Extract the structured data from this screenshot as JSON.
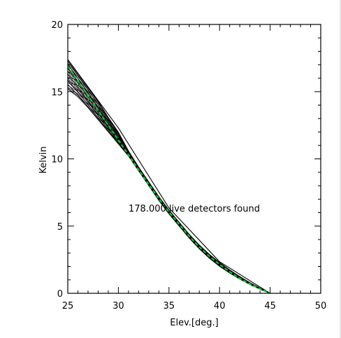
{
  "chart_data": {
    "type": "line",
    "xlabel": "Elev.[deg.]",
    "ylabel": "Kelvin",
    "xlim": [
      25,
      50
    ],
    "ylim": [
      0,
      20
    ],
    "x_ticks": [
      "25",
      "30",
      "35",
      "40",
      "45",
      "50"
    ],
    "y_ticks": [
      "0",
      "5",
      "10",
      "15",
      "20"
    ],
    "annotation": "178.000 live detectors found",
    "grid": false,
    "detector_band": {
      "description": "dense bundle of black detector curves",
      "upper": [
        [
          25,
          17.3
        ],
        [
          26,
          16.3
        ],
        [
          27,
          15.3
        ],
        [
          28,
          14.3
        ],
        [
          29,
          13.1
        ],
        [
          30,
          12.0
        ],
        [
          31,
          10.6
        ],
        [
          32,
          9.4
        ],
        [
          33,
          8.3
        ],
        [
          34,
          7.2
        ],
        [
          35,
          6.2
        ],
        [
          36,
          5.3
        ],
        [
          37,
          4.4
        ],
        [
          38,
          3.6
        ],
        [
          39,
          2.9
        ],
        [
          40,
          2.3
        ],
        [
          41,
          1.75
        ],
        [
          42,
          1.25
        ],
        [
          43,
          0.8
        ],
        [
          44,
          0.4
        ],
        [
          45,
          0.0
        ]
      ],
      "lower": [
        [
          25,
          15.2
        ],
        [
          26,
          14.6
        ],
        [
          27,
          13.8
        ],
        [
          28,
          12.9
        ],
        [
          29,
          12.0
        ],
        [
          30,
          11.1
        ],
        [
          31,
          10.2
        ],
        [
          32,
          9.1
        ],
        [
          33,
          8.0
        ],
        [
          34,
          6.9
        ],
        [
          35,
          5.9
        ],
        [
          36,
          5.0
        ],
        [
          37,
          4.1
        ],
        [
          38,
          3.3
        ],
        [
          39,
          2.6
        ],
        [
          40,
          2.0
        ],
        [
          41,
          1.5
        ],
        [
          42,
          1.05
        ],
        [
          43,
          0.65
        ],
        [
          44,
          0.3
        ],
        [
          45,
          0.0
        ]
      ]
    },
    "outer_line": [
      [
        25,
        17.4
      ],
      [
        30,
        12.3
      ],
      [
        35,
        6.35
      ],
      [
        40,
        2.35
      ],
      [
        45,
        0.0
      ]
    ],
    "model_curve": {
      "color": "#00cc33",
      "style": "dashed",
      "points": [
        [
          25,
          16.9
        ],
        [
          26,
          15.8
        ],
        [
          27,
          14.7
        ],
        [
          28,
          13.6
        ],
        [
          29,
          12.5
        ],
        [
          30,
          11.4
        ],
        [
          31,
          10.3
        ],
        [
          32,
          9.2
        ],
        [
          33,
          8.1
        ],
        [
          34,
          7.05
        ],
        [
          35,
          6.05
        ],
        [
          36,
          5.15
        ],
        [
          37,
          4.25
        ],
        [
          38,
          3.45
        ],
        [
          39,
          2.75
        ],
        [
          40,
          2.15
        ],
        [
          41,
          1.6
        ],
        [
          42,
          1.1
        ],
        [
          43,
          0.7
        ],
        [
          44,
          0.33
        ],
        [
          45,
          0.0
        ]
      ]
    },
    "colors": {
      "detectors": "#000000",
      "model": "#00cc33",
      "axes": "#000000"
    }
  }
}
